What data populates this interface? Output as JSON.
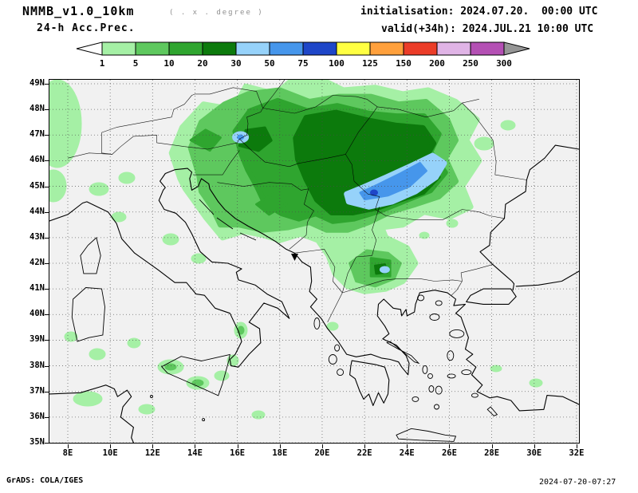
{
  "header": {
    "title": "NMMB_v1.0_10km",
    "title_note": "( . x . degree )",
    "subtitle": "24-h Acc.Prec.",
    "init_label": "initialisation:",
    "init_value": "2024.07.20.  00:00 UTC",
    "valid_label": "valid(+34h):",
    "valid_value": "2024.JUL.21 10:00 UTC"
  },
  "legend": {
    "ticks": [
      "1",
      "5",
      "10",
      "20",
      "30",
      "50",
      "75",
      "100",
      "125",
      "150",
      "200",
      "250",
      "300"
    ],
    "colors": {
      "below": "#ffffff",
      "bands": [
        "#a5f0a5",
        "#5ec85e",
        "#2fa52f",
        "#0c7a0c",
        "#96d2fa",
        "#4696eb",
        "#1e46c8",
        "#ffff42",
        "#ffa03c",
        "#eb3c28",
        "#e0b4e6",
        "#b450b4"
      ],
      "above": "#969696"
    }
  },
  "map": {
    "lat_ticks": [
      "49N",
      "48N",
      "47N",
      "46N",
      "45N",
      "44N",
      "43N",
      "42N",
      "41N",
      "40N",
      "39N",
      "38N",
      "37N",
      "36N",
      "35N"
    ],
    "lon_ticks": [
      "8E",
      "10E",
      "12E",
      "14E",
      "16E",
      "18E",
      "20E",
      "22E",
      "24E",
      "26E",
      "28E",
      "30E",
      "32E"
    ]
  },
  "footer": {
    "credit": "GrADS: COLA/IGES",
    "timestamp": "2024-07-20-07:27"
  },
  "chart_data": {
    "type": "filled_contour_map",
    "variable": "24-h accumulated precipitation",
    "levels": [
      1,
      5,
      10,
      20,
      30,
      50,
      75,
      100,
      125,
      150,
      200,
      250,
      300
    ],
    "extent": {
      "lon_min": 8,
      "lon_max": 32,
      "lat_min": 35,
      "lat_max": 49
    },
    "features": [
      {
        "region": "Pannonian basin and Carpathians (Hungary, Slovakia, W Romania, N Serbia)",
        "max_band": "30-50 widespread"
      },
      {
        "region": "Lower Danube / Southern Carpathians near 45N 21-24E",
        "max_band": "75-100 localized core"
      },
      {
        "region": "W Hungary / Austria border near 47N 16E",
        "max_band": "50-75 small spot"
      },
      {
        "region": "SW Bulgaria / N Macedonia near 41.7N 23E",
        "max_band": "30-50 small spot"
      },
      {
        "region": "Dinaric Alps, Bosnia and Croatia",
        "max_band": "10-30 patches"
      },
      {
        "region": "Scattered light showers over Italy, Sicily, Ionian, Aegean and W Turkey",
        "max_band": "1-10"
      }
    ]
  }
}
